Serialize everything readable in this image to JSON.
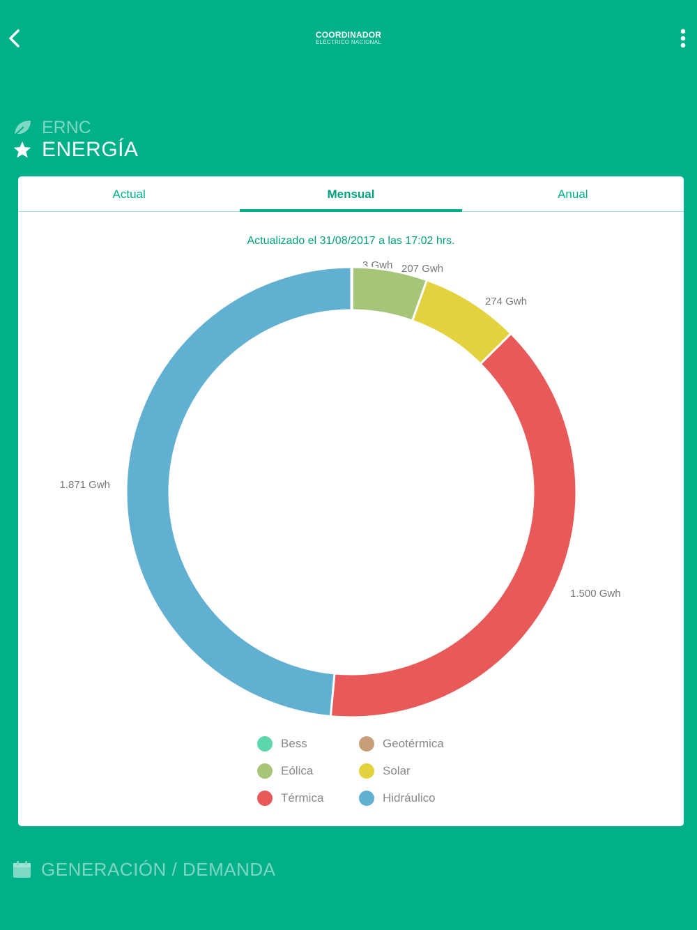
{
  "header": {
    "logo_line1": "COORDINADOR",
    "logo_line2": "ELÉCTRICO NACIONAL",
    "back_icon": "chevron-left-icon",
    "menu_icon": "more-vertical-icon"
  },
  "sections": {
    "ernc": {
      "label": "ERNC",
      "icon": "leaf-icon"
    },
    "energia": {
      "label": "ENERGÍA",
      "icon": "star-icon"
    },
    "generacion": {
      "label": "GENERACIÓN / DEMANDA",
      "icon": "calendar-icon"
    }
  },
  "tabs": [
    {
      "label": "Actual",
      "active": false
    },
    {
      "label": "Mensual",
      "active": true
    },
    {
      "label": "Anual",
      "active": false
    }
  ],
  "updated_text": "Actualizado el 31/08/2017 a las 17:02 hrs.",
  "colors": {
    "background": "#00B089",
    "accent": "#00A27C"
  },
  "chart_data": {
    "type": "pie",
    "variant": "donut",
    "unit": "Gwh",
    "slices": [
      {
        "name": "Bess",
        "value": 0,
        "label": "",
        "color": "#5CD6AC"
      },
      {
        "name": "Geotérmica",
        "value": 3,
        "label": "3 Gwh",
        "color": "#C69F7A"
      },
      {
        "name": "Eólica",
        "value": 207,
        "label": "207 Gwh",
        "color": "#A6C578"
      },
      {
        "name": "Solar",
        "value": 274,
        "label": "274 Gwh",
        "color": "#E3D13D"
      },
      {
        "name": "Térmica",
        "value": 1500,
        "label": "1.500 Gwh",
        "color": "#E85A59"
      },
      {
        "name": "Hidráulico",
        "value": 1871,
        "label": "1.871 Gwh",
        "color": "#61AFD1"
      }
    ],
    "legend": [
      {
        "name": "Bess",
        "color": "#5CD6AC"
      },
      {
        "name": "Geotérmica",
        "color": "#C69F7A"
      },
      {
        "name": "Eólica",
        "color": "#A6C578"
      },
      {
        "name": "Solar",
        "color": "#E3D13D"
      },
      {
        "name": "Térmica",
        "color": "#E85A59"
      },
      {
        "name": "Hidráulico",
        "color": "#61AFD1"
      }
    ],
    "legend_placement": "bottom"
  }
}
